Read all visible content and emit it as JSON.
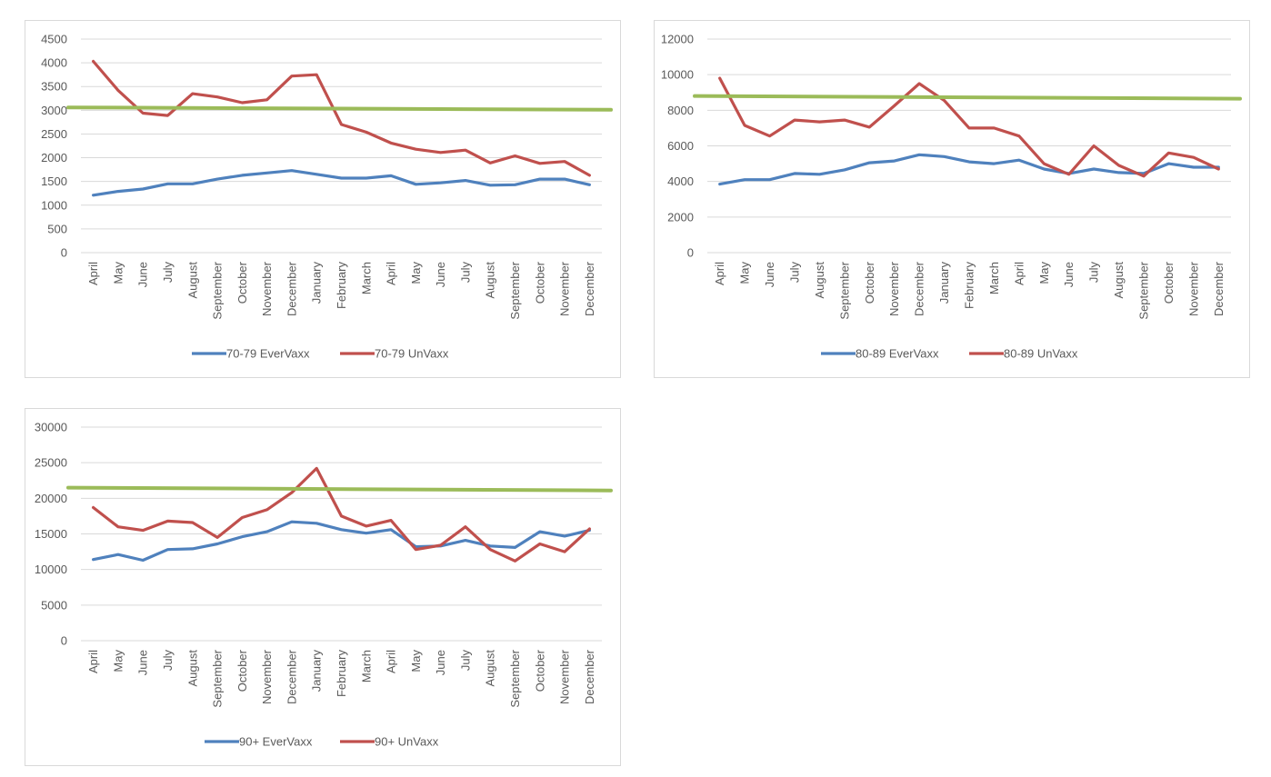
{
  "chart_data": [
    {
      "type": "line",
      "categories": [
        "April",
        "May",
        "June",
        "July",
        "August",
        "September",
        "October",
        "November",
        "December",
        "January",
        "February",
        "March",
        "April",
        "May",
        "June",
        "July",
        "August",
        "September",
        "October",
        "November",
        "December"
      ],
      "ylim": [
        0,
        4500
      ],
      "yticks": [
        0,
        500,
        1000,
        1500,
        2000,
        2500,
        3000,
        3500,
        4000,
        4500
      ],
      "grid": true,
      "legend_position": "bottom",
      "series": [
        {
          "name": "70-79 EverVaxx",
          "color": "#4f81bd",
          "values": [
            1210,
            1290,
            1340,
            1450,
            1450,
            1550,
            1630,
            1680,
            1730,
            1650,
            1570,
            1570,
            1620,
            1440,
            1470,
            1520,
            1420,
            1430,
            1550,
            1550,
            1430
          ]
        },
        {
          "name": "70-79 UnVaxx",
          "color": "#c0504d",
          "values": [
            4030,
            3420,
            2940,
            2890,
            3350,
            3280,
            3160,
            3220,
            3720,
            3750,
            2700,
            2540,
            2310,
            2180,
            2110,
            2160,
            1890,
            2040,
            1880,
            1920,
            1630
          ]
        }
      ],
      "reference_line": {
        "color": "#9bbb59",
        "y_start": 3060,
        "y_end": 3010
      }
    },
    {
      "type": "line",
      "categories": [
        "April",
        "May",
        "June",
        "July",
        "August",
        "September",
        "October",
        "November",
        "December",
        "January",
        "February",
        "March",
        "April",
        "May",
        "June",
        "July",
        "August",
        "September",
        "October",
        "November",
        "December"
      ],
      "ylim": [
        0,
        12000
      ],
      "yticks": [
        0,
        2000,
        4000,
        6000,
        8000,
        10000,
        12000
      ],
      "grid": true,
      "legend_position": "bottom",
      "series": [
        {
          "name": "80-89 EverVaxx",
          "color": "#4f81bd",
          "values": [
            3850,
            4100,
            4100,
            4450,
            4400,
            4650,
            5050,
            5150,
            5500,
            5400,
            5100,
            5000,
            5200,
            4700,
            4450,
            4700,
            4500,
            4450,
            5000,
            4800,
            4800
          ]
        },
        {
          "name": "80-89 UnVaxx",
          "color": "#c0504d",
          "values": [
            9800,
            7150,
            6550,
            7450,
            7350,
            7450,
            7050,
            8250,
            9500,
            8550,
            7000,
            7000,
            6550,
            5000,
            4400,
            6000,
            4900,
            4300,
            5600,
            5350,
            4700
          ]
        }
      ],
      "reference_line": {
        "color": "#9bbb59",
        "y_start": 8800,
        "y_end": 8650
      }
    },
    {
      "type": "line",
      "categories": [
        "April",
        "May",
        "June",
        "July",
        "August",
        "September",
        "October",
        "November",
        "December",
        "January",
        "February",
        "March",
        "April",
        "May",
        "June",
        "July",
        "August",
        "September",
        "October",
        "November",
        "December"
      ],
      "ylim": [
        0,
        30000
      ],
      "yticks": [
        0,
        5000,
        10000,
        15000,
        20000,
        25000,
        30000
      ],
      "grid": true,
      "legend_position": "bottom",
      "series": [
        {
          "name": "90+ EverVaxx",
          "color": "#4f81bd",
          "values": [
            11400,
            12100,
            11300,
            12800,
            12900,
            13600,
            14600,
            15300,
            16700,
            16500,
            15600,
            15100,
            15600,
            13200,
            13300,
            14100,
            13300,
            13100,
            15300,
            14700,
            15500
          ]
        },
        {
          "name": "90+ UnVaxx",
          "color": "#c0504d",
          "values": [
            18700,
            16000,
            15500,
            16800,
            16600,
            14500,
            17300,
            18400,
            20800,
            24200,
            17500,
            16100,
            16900,
            12800,
            13400,
            16000,
            12800,
            11200,
            13600,
            12500,
            15700
          ]
        }
      ],
      "reference_line": {
        "color": "#9bbb59",
        "y_start": 21500,
        "y_end": 21100
      }
    }
  ]
}
